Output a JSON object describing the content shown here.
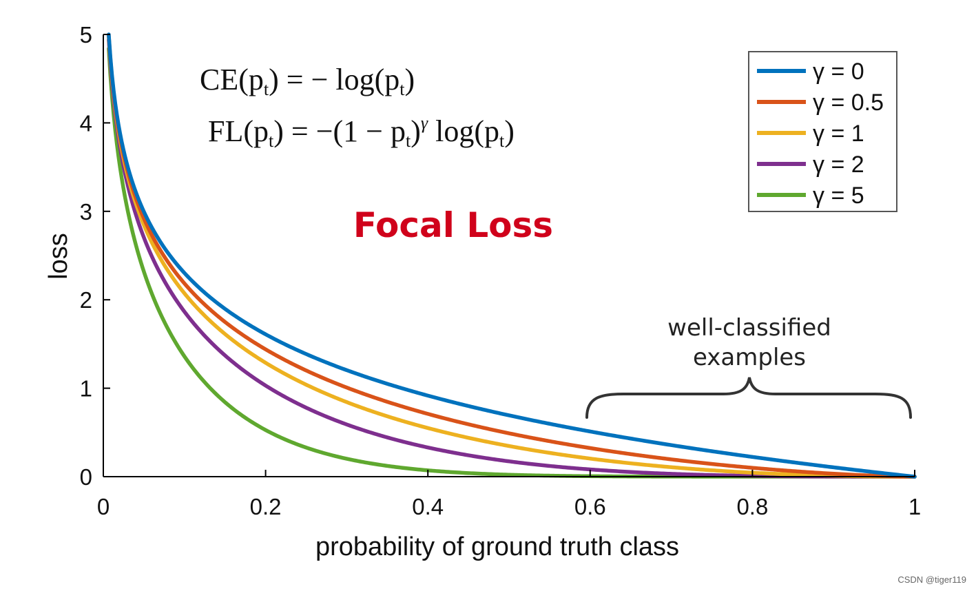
{
  "chart_data": {
    "type": "line",
    "title": "Focal Loss",
    "title_color": "#d0021b",
    "xlabel": "probability of ground truth class",
    "ylabel": "loss",
    "xlim": [
      0,
      1
    ],
    "ylim": [
      0,
      5
    ],
    "x_ticks": [
      "0",
      "0.2",
      "0.4",
      "0.6",
      "0.8",
      "1"
    ],
    "y_ticks": [
      "0",
      "1",
      "2",
      "3",
      "4",
      "5"
    ],
    "grid": false,
    "legend_position": "top-right",
    "formulas": {
      "ce": {
        "lhs": "CE(p",
        "sub": "t",
        "rhs": ") = − log(p",
        "sub2": "t",
        "end": ")"
      },
      "fl": {
        "lhs": "FL(p",
        "sub": "t",
        "rhs": ") = −(1 − p",
        "sub2": "t",
        "sup_pre": ")",
        "sup": "γ",
        "mid": " log(p",
        "sub3": "t",
        "end": ")"
      }
    },
    "annotation": {
      "line1": "well-classified",
      "line2": "examples",
      "range": [
        0.6,
        1
      ]
    },
    "series": [
      {
        "name": "γ = 0",
        "gamma": 0,
        "color": "#0072bd"
      },
      {
        "name": "γ = 0.5",
        "gamma": 0.5,
        "color": "#d95319"
      },
      {
        "name": "γ = 1",
        "gamma": 1,
        "color": "#edb120"
      },
      {
        "name": "γ = 2",
        "gamma": 2,
        "color": "#7e2f8e"
      },
      {
        "name": "γ = 5",
        "gamma": 5,
        "color": "#5fa82f"
      }
    ]
  },
  "watermark": "CSDN @tiger119"
}
